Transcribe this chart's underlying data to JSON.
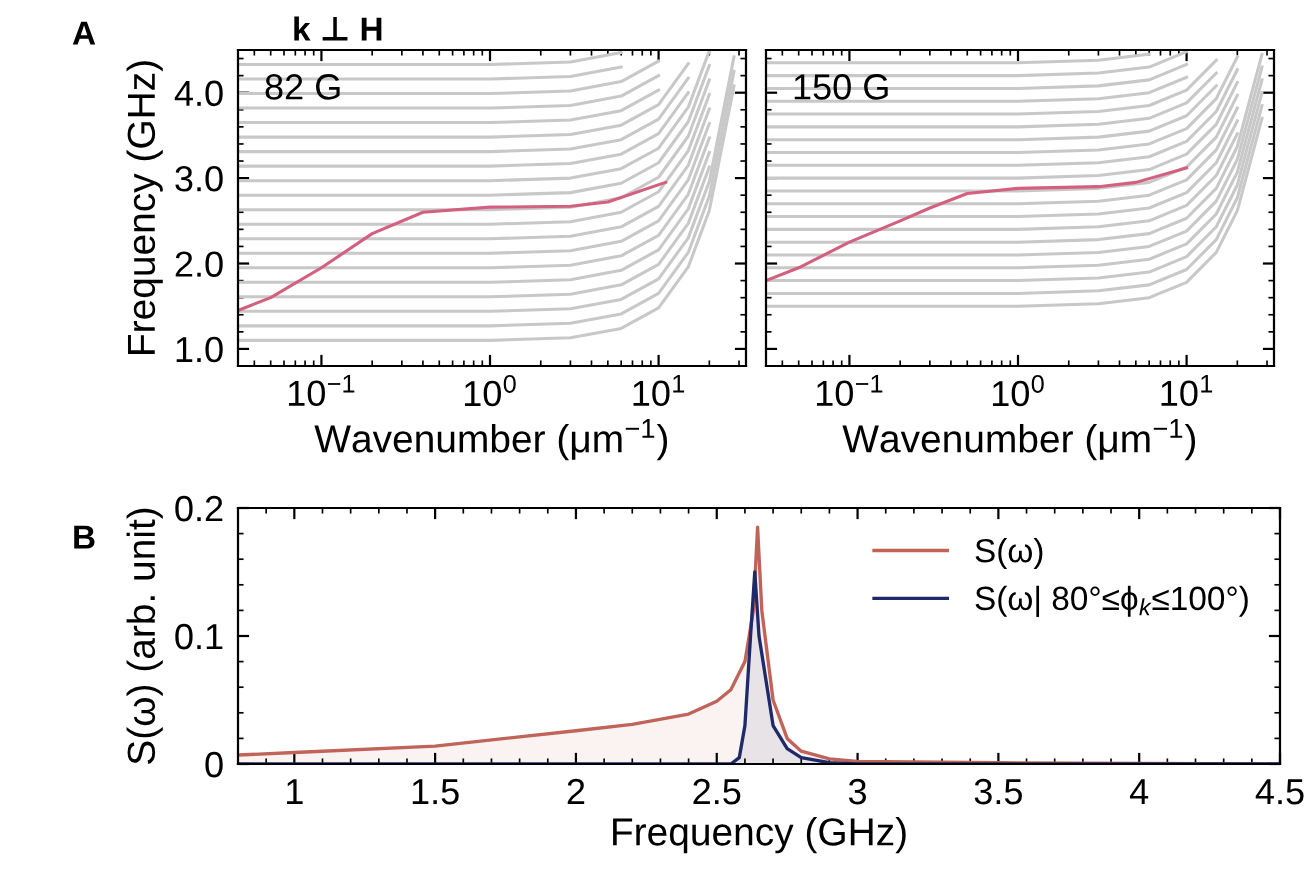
{
  "chart_data": [
    {
      "type": "line",
      "xlabel": "Wavenumber (μm$^{−1}$)",
      "ylabel": "Frequency (GHz)",
      "log": "x",
      "xlim": [
        0.032,
        33
      ],
      "ylim": [
        0.8,
        4.5
      ],
      "xticks": [
        {
          "value": 0.1,
          "label": "10$^{−1}$"
        },
        {
          "value": 1,
          "label": "10$^{0}$"
        },
        {
          "value": 10,
          "label": "10$^{1}$"
        }
      ],
      "yticks": [
        {
          "value": 1,
          "label": "1.0"
        },
        {
          "value": 2,
          "label": "2.0"
        },
        {
          "value": 3,
          "label": "3.0"
        },
        {
          "value": 4,
          "label": "4.0"
        }
      ],
      "annotations": [
        "A",
        "k ⊥ H",
        "82 G"
      ],
      "grid": false,
      "legend": false,
      "x": [
        0.032,
        1,
        3,
        6,
        10,
        15,
        20,
        28
      ],
      "series": [
        {
          "color": "#c8c8c8",
          "values": [
            1.1,
            1.1,
            1.13,
            1.24,
            1.48,
            1.96,
            2.62,
            4.08
          ]
        },
        {
          "color": "#c8c8c8",
          "values": [
            1.27,
            1.27,
            1.3,
            1.41,
            1.65,
            2.13,
            2.79,
            4.25
          ]
        },
        {
          "color": "#c8c8c8",
          "values": [
            1.44,
            1.44,
            1.47,
            1.58,
            1.82,
            2.3,
            2.96,
            4.42
          ]
        },
        {
          "color": "#c8c8c8",
          "values": [
            1.61,
            1.61,
            1.64,
            1.75,
            1.99,
            2.47,
            3.13,
            null
          ]
        },
        {
          "color": "#c8c8c8",
          "values": [
            1.78,
            1.78,
            1.81,
            1.92,
            2.16,
            2.64,
            3.3,
            null
          ]
        },
        {
          "color": "#c8c8c8",
          "values": [
            1.95,
            1.95,
            1.98,
            2.09,
            2.33,
            2.81,
            3.47,
            null
          ]
        },
        {
          "color": "#c8c8c8",
          "values": [
            2.12,
            2.12,
            2.15,
            2.26,
            2.5,
            2.98,
            3.64,
            null
          ]
        },
        {
          "color": "#c8c8c8",
          "values": [
            2.29,
            2.29,
            2.32,
            2.43,
            2.67,
            3.15,
            3.81,
            null
          ]
        },
        {
          "color": "#c8c8c8",
          "values": [
            2.46,
            2.46,
            2.49,
            2.6,
            2.84,
            3.32,
            3.98,
            null
          ]
        },
        {
          "color": "#c8c8c8",
          "values": [
            2.63,
            2.63,
            2.66,
            2.77,
            3.01,
            3.49,
            4.15,
            null
          ]
        },
        {
          "color": "#c8c8c8",
          "values": [
            2.8,
            2.8,
            2.83,
            2.94,
            3.18,
            3.66,
            4.32,
            null
          ]
        },
        {
          "color": "#c8c8c8",
          "values": [
            2.97,
            2.97,
            3.0,
            3.11,
            3.35,
            3.83,
            4.49,
            null
          ]
        },
        {
          "color": "#c8c8c8",
          "values": [
            3.14,
            3.14,
            3.17,
            3.28,
            3.52,
            4.0,
            null,
            null
          ]
        },
        {
          "color": "#c8c8c8",
          "values": [
            3.31,
            3.31,
            3.34,
            3.45,
            3.69,
            4.17,
            null,
            null
          ]
        },
        {
          "color": "#c8c8c8",
          "values": [
            3.48,
            3.48,
            3.51,
            3.62,
            3.86,
            4.34,
            null,
            null
          ]
        },
        {
          "color": "#c8c8c8",
          "values": [
            3.65,
            3.65,
            3.68,
            3.79,
            4.03,
            null,
            null,
            null
          ]
        },
        {
          "color": "#c8c8c8",
          "values": [
            3.82,
            3.82,
            3.85,
            3.96,
            4.2,
            null,
            null,
            null
          ]
        },
        {
          "color": "#c8c8c8",
          "values": [
            3.99,
            3.99,
            4.02,
            4.13,
            4.37,
            null,
            null,
            null
          ]
        },
        {
          "color": "#c8c8c8",
          "values": [
            4.16,
            4.16,
            4.19,
            4.3,
            null,
            null,
            null,
            null
          ]
        },
        {
          "color": "#c8c8c8",
          "values": [
            4.33,
            4.33,
            4.36,
            4.47,
            null,
            null,
            null,
            null
          ]
        },
        {
          "color": "#d4607f",
          "x": [
            0.032,
            0.05,
            0.1,
            0.2,
            0.4,
            1,
            3,
            5,
            11
          ],
          "values": [
            1.45,
            1.6,
            1.95,
            2.35,
            2.6,
            2.66,
            2.67,
            2.72,
            2.95
          ]
        }
      ]
    },
    {
      "type": "line",
      "log": "x",
      "xlim": [
        0.032,
        33
      ],
      "ylim": [
        0.8,
        4.5
      ],
      "tick_labels": "x",
      "xticks": [
        {
          "value": 0.1,
          "label": "10$^{−1}$"
        },
        {
          "value": 1,
          "label": "10$^{0}$"
        },
        {
          "value": 10,
          "label": "10$^{1}$"
        }
      ],
      "yticks": [
        {
          "value": 1,
          "label": null
        },
        {
          "value": 2,
          "label": null
        },
        {
          "value": 3,
          "label": null
        },
        {
          "value": 4,
          "label": null
        }
      ],
      "xlabel": "Wavenumber (μm$^{−1}$)",
      "annotations": [
        "150 G"
      ],
      "grid": false,
      "legend": false,
      "x": [
        0.032,
        1,
        3,
        6,
        10,
        15,
        20,
        28
      ],
      "series": [
        {
          "color": "#c8c8c8",
          "values": [
            1.5,
            1.5,
            1.53,
            1.6,
            1.78,
            2.13,
            2.62,
            3.7
          ]
        },
        {
          "color": "#c8c8c8",
          "values": [
            1.65,
            1.65,
            1.68,
            1.75,
            1.93,
            2.28,
            2.77,
            3.85
          ]
        },
        {
          "color": "#c8c8c8",
          "values": [
            1.8,
            1.8,
            1.83,
            1.9,
            2.08,
            2.43,
            2.92,
            4.0
          ]
        },
        {
          "color": "#c8c8c8",
          "values": [
            1.95,
            1.95,
            1.98,
            2.05,
            2.23,
            2.58,
            3.07,
            4.15
          ]
        },
        {
          "color": "#c8c8c8",
          "values": [
            2.1,
            2.1,
            2.13,
            2.2,
            2.38,
            2.73,
            3.22,
            4.3
          ]
        },
        {
          "color": "#c8c8c8",
          "values": [
            2.25,
            2.25,
            2.28,
            2.35,
            2.53,
            2.88,
            3.37,
            4.45
          ]
        },
        {
          "color": "#c8c8c8",
          "values": [
            2.4,
            2.4,
            2.43,
            2.5,
            2.68,
            3.03,
            3.52,
            null
          ]
        },
        {
          "color": "#c8c8c8",
          "values": [
            2.55,
            2.55,
            2.58,
            2.65,
            2.83,
            3.18,
            3.67,
            null
          ]
        },
        {
          "color": "#c8c8c8",
          "values": [
            2.7,
            2.7,
            2.73,
            2.8,
            2.98,
            3.33,
            3.82,
            null
          ]
        },
        {
          "color": "#c8c8c8",
          "values": [
            2.85,
            2.85,
            2.88,
            2.95,
            3.13,
            3.48,
            3.97,
            null
          ]
        },
        {
          "color": "#c8c8c8",
          "values": [
            3.0,
            3.0,
            3.03,
            3.1,
            3.28,
            3.63,
            4.12,
            null
          ]
        },
        {
          "color": "#c8c8c8",
          "values": [
            3.15,
            3.15,
            3.18,
            3.25,
            3.43,
            3.78,
            4.27,
            null
          ]
        },
        {
          "color": "#c8c8c8",
          "values": [
            3.3,
            3.3,
            3.33,
            3.4,
            3.58,
            3.93,
            4.42,
            null
          ]
        },
        {
          "color": "#c8c8c8",
          "values": [
            3.45,
            3.45,
            3.48,
            3.55,
            3.73,
            4.08,
            null,
            null
          ]
        },
        {
          "color": "#c8c8c8",
          "values": [
            3.6,
            3.6,
            3.63,
            3.7,
            3.88,
            4.23,
            null,
            null
          ]
        },
        {
          "color": "#c8c8c8",
          "values": [
            3.75,
            3.75,
            3.78,
            3.85,
            4.03,
            4.38,
            null,
            null
          ]
        },
        {
          "color": "#c8c8c8",
          "values": [
            3.9,
            3.9,
            3.93,
            4.0,
            4.18,
            null,
            null,
            null
          ]
        },
        {
          "color": "#c8c8c8",
          "values": [
            4.05,
            4.05,
            4.08,
            4.15,
            4.33,
            null,
            null,
            null
          ]
        },
        {
          "color": "#c8c8c8",
          "values": [
            4.2,
            4.2,
            4.23,
            4.3,
            4.48,
            null,
            null,
            null
          ]
        },
        {
          "color": "#c8c8c8",
          "values": [
            4.35,
            4.35,
            4.38,
            4.45,
            null,
            null,
            null,
            null
          ]
        },
        {
          "color": "#d4607f",
          "x": [
            0.032,
            0.05,
            0.1,
            0.2,
            0.3,
            0.5,
            1,
            3,
            5,
            10
          ],
          "values": [
            1.8,
            1.95,
            2.25,
            2.5,
            2.65,
            2.82,
            2.88,
            2.9,
            2.95,
            3.12
          ]
        }
      ]
    },
    {
      "type": "area",
      "xlabel": "Frequency (GHz)",
      "ylabel": "S(ω) (arb. unit)",
      "xlim": [
        0.8,
        4.5
      ],
      "ylim": [
        0,
        0.2
      ],
      "xticks": [
        1,
        1.5,
        2,
        2.5,
        3,
        3.5,
        4,
        4.5
      ],
      "yticks": [
        0,
        0.1,
        0.2
      ],
      "annotations": [
        "B"
      ],
      "grid": false,
      "legend": "top right",
      "series": [
        {
          "name": "S(ω)",
          "color": "#c0645a",
          "x": [
            0.8,
            1.0,
            1.5,
            2.0,
            2.2,
            2.4,
            2.5,
            2.55,
            2.6,
            2.63,
            2.645,
            2.66,
            2.7,
            2.75,
            2.8,
            2.9,
            3.0,
            3.5,
            4.5
          ],
          "values": [
            0.007,
            0.009,
            0.014,
            0.026,
            0.031,
            0.039,
            0.049,
            0.058,
            0.08,
            0.12,
            0.185,
            0.12,
            0.05,
            0.02,
            0.01,
            0.004,
            0.002,
            0.001,
            0
          ]
        },
        {
          "name": "S(ω| 80°≤ϕ$_{k}$≤100°)",
          "color": "#1f2a6b",
          "x": [
            0.8,
            2.55,
            2.58,
            2.6,
            2.62,
            2.635,
            2.65,
            2.7,
            2.75,
            2.8,
            2.9,
            3.0,
            4.5
          ],
          "values": [
            0,
            0,
            0.005,
            0.03,
            0.1,
            0.15,
            0.1,
            0.03,
            0.012,
            0.005,
            0.001,
            0,
            0
          ]
        }
      ]
    }
  ]
}
